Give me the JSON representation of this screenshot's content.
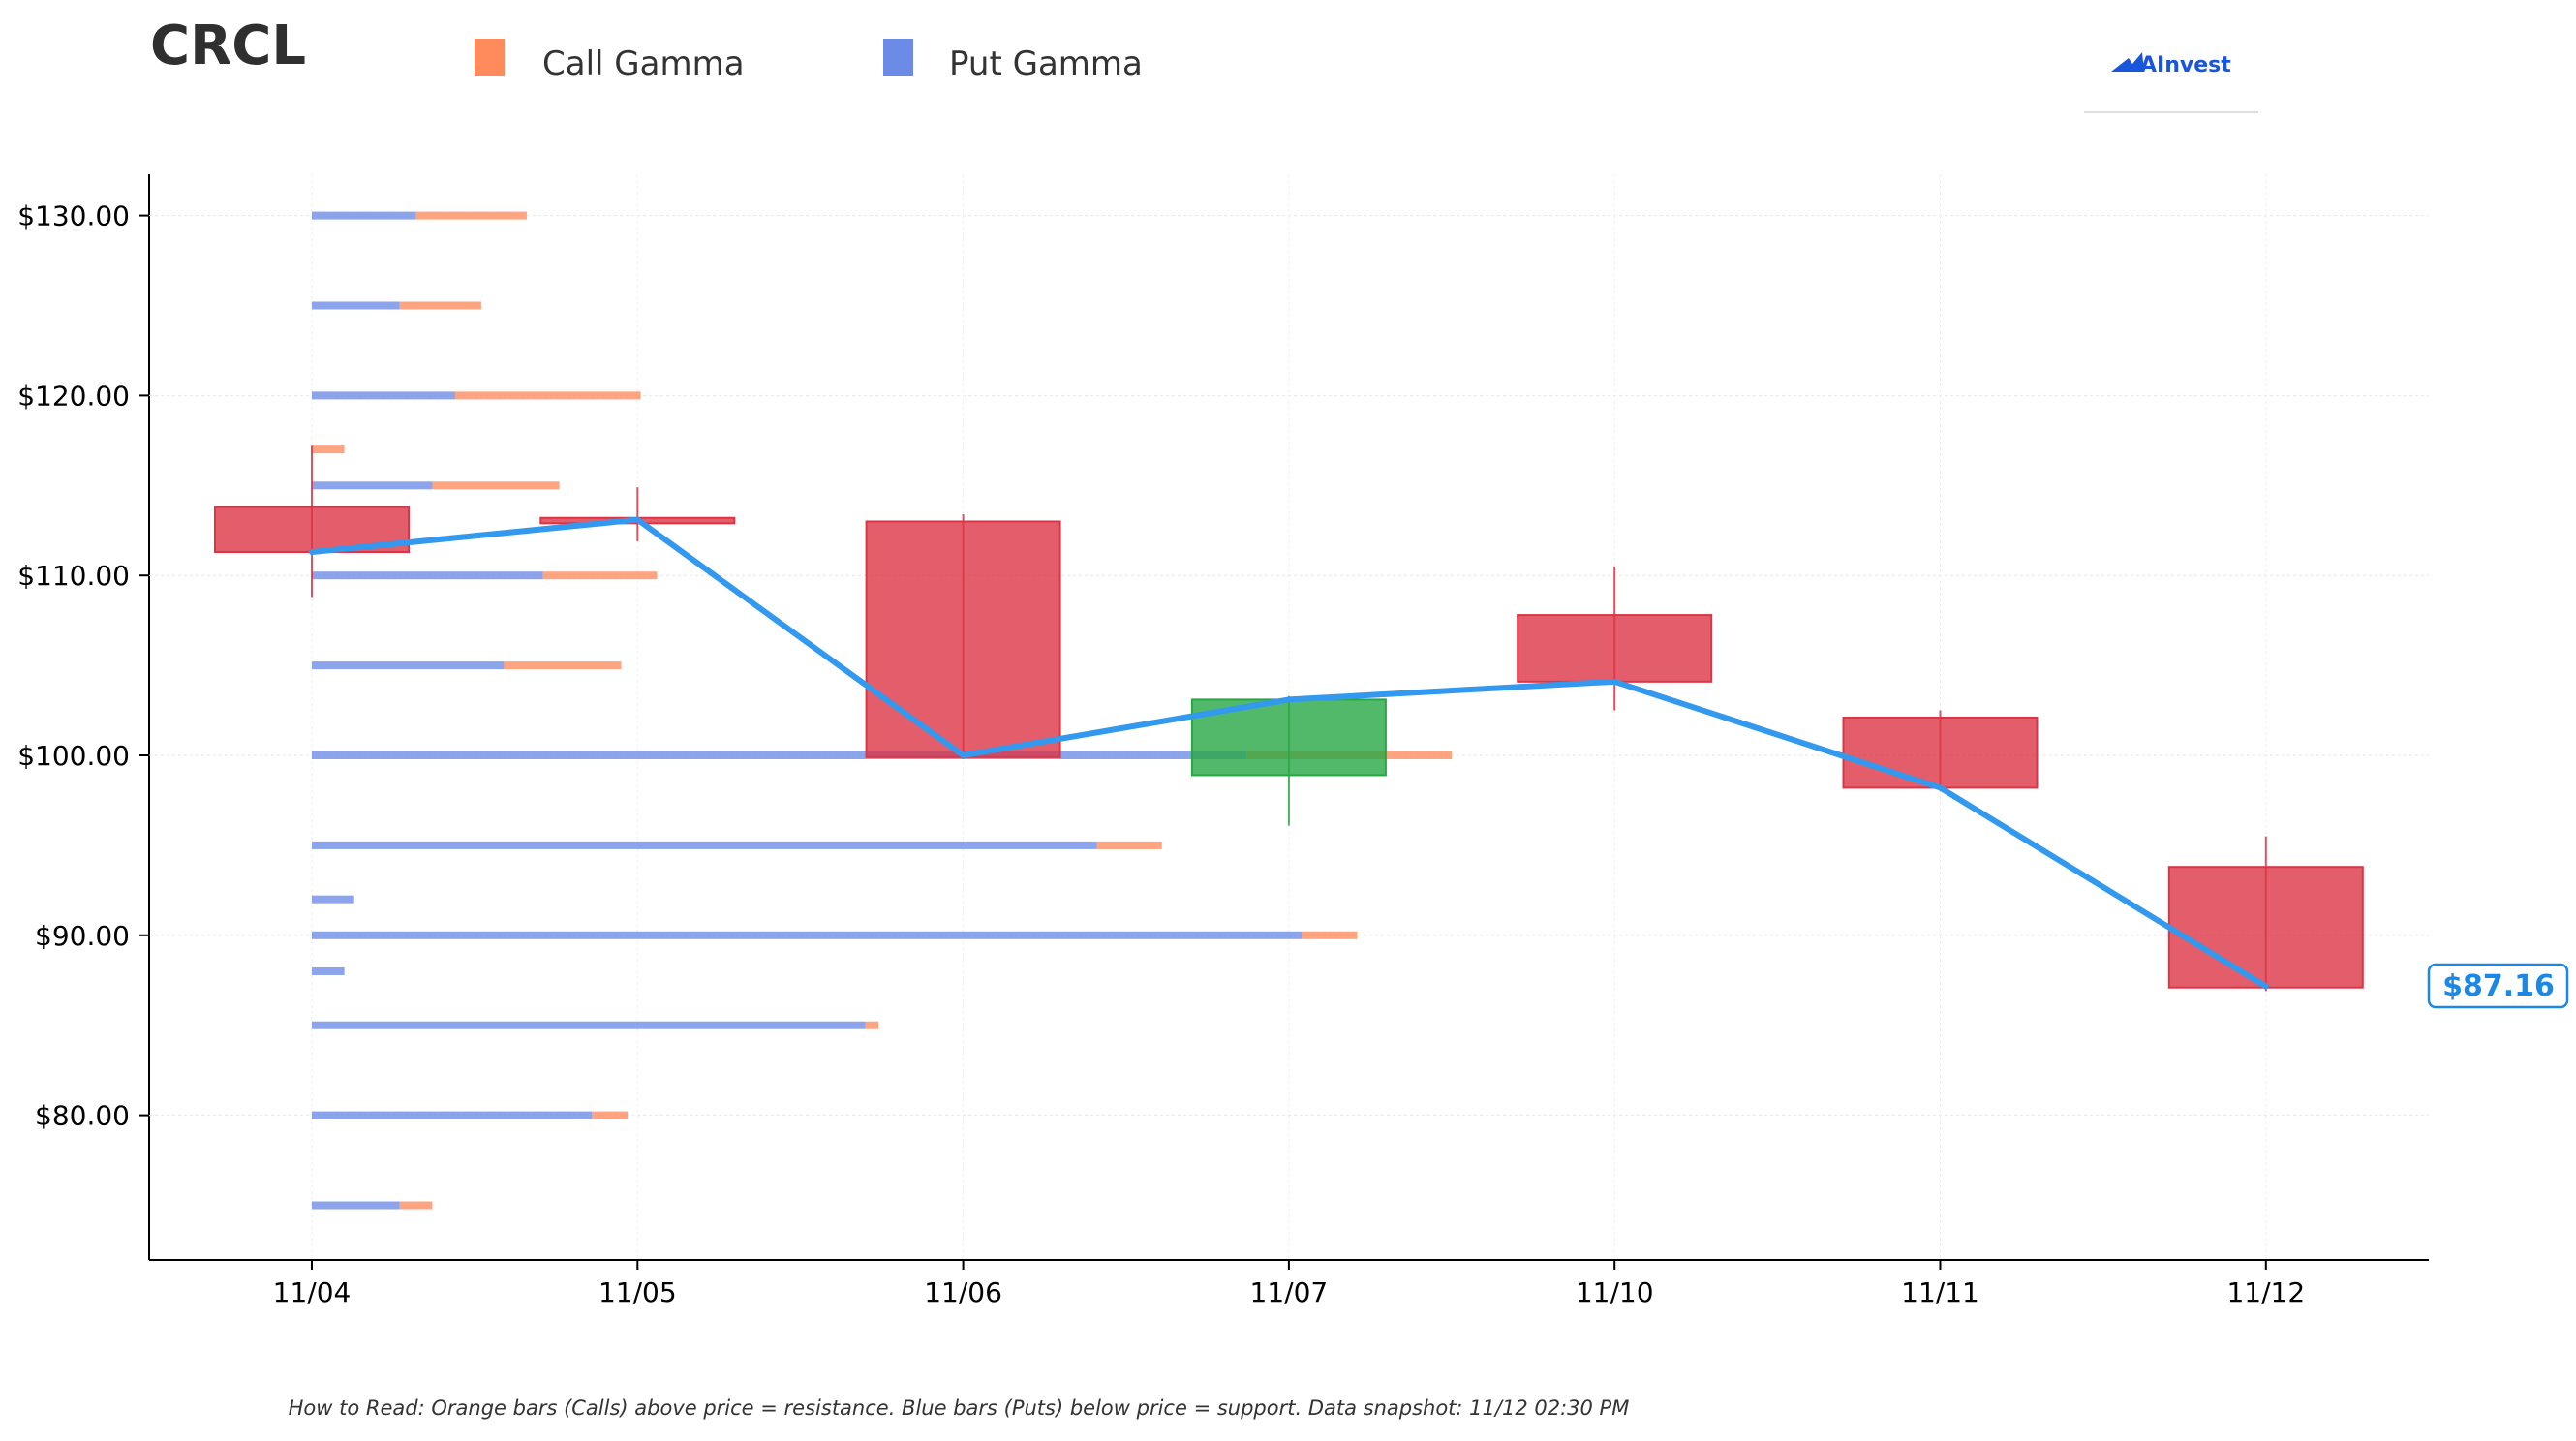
{
  "header": {
    "ticker": "CRCL",
    "legend": [
      {
        "label": "Call Gamma",
        "color": "#ff8a5c"
      },
      {
        "label": "Put Gamma",
        "color": "#6b8be6"
      }
    ],
    "logo_text": "AInvest"
  },
  "footer": {
    "note": "How to Read: Orange bars (Calls) above price = resistance. Blue bars (Puts) below price = support. Data snapshot: 11/12 02:30 PM"
  },
  "colors": {
    "call": "#ff8a5c",
    "put": "#6b8be6",
    "down_candle": "#dc3545",
    "up_candle": "#28a745",
    "price_line": "#3399ee",
    "price_tag": "#1a88e6",
    "logo": "#1a56db"
  },
  "chart_data": {
    "type": "candlestick",
    "title": "CRCL",
    "x_categories": [
      "11/04",
      "11/05",
      "11/06",
      "11/07",
      "11/10",
      "11/11",
      "11/12"
    ],
    "y_ticks": [
      "$80.00",
      "$90.00",
      "$100.00",
      "$110.00",
      "$120.00",
      "$130.00"
    ],
    "ylim": [
      72,
      132.3
    ],
    "y_grid": true,
    "legend_position": "top",
    "candles": [
      {
        "date": "11/04",
        "open": 113.8,
        "close": 111.3,
        "high": 117.2,
        "low": 108.8
      },
      {
        "date": "11/05",
        "open": 113.2,
        "close": 112.9,
        "high": 114.9,
        "low": 111.9
      },
      {
        "date": "11/06",
        "open": 113.0,
        "close": 99.9,
        "high": 113.4,
        "low": 99.8
      },
      {
        "date": "11/07",
        "open": 98.9,
        "close": 103.1,
        "high": 103.3,
        "low": 96.1
      },
      {
        "date": "11/10",
        "open": 107.8,
        "close": 104.1,
        "high": 110.5,
        "low": 102.5
      },
      {
        "date": "11/11",
        "open": 102.1,
        "close": 98.2,
        "high": 102.5,
        "low": 98.0
      },
      {
        "date": "11/12",
        "open": 93.8,
        "close": 87.1,
        "high": 95.5,
        "low": 86.9
      }
    ],
    "price_line": [
      111.3,
      113.1,
      100.0,
      103.1,
      104.1,
      98.2,
      87.16
    ],
    "last_price_label": "$87.16",
    "gamma_x_units": "category",
    "gamma_levels": [
      {
        "strike": 130,
        "put": 0.32,
        "call": 0.34
      },
      {
        "strike": 125,
        "put": 0.27,
        "call": 0.25
      },
      {
        "strike": 120,
        "put": 0.44,
        "call": 0.57
      },
      {
        "strike": 117,
        "put": 0.0,
        "call": 0.1
      },
      {
        "strike": 115,
        "put": 0.37,
        "call": 0.39
      },
      {
        "strike": 110,
        "put": 0.71,
        "call": 0.35
      },
      {
        "strike": 105,
        "put": 0.59,
        "call": 0.36
      },
      {
        "strike": 100,
        "put": 2.87,
        "call": 0.63
      },
      {
        "strike": 95,
        "put": 2.41,
        "call": 0.2
      },
      {
        "strike": 92,
        "put": 0.13,
        "call": 0.0
      },
      {
        "strike": 90,
        "put": 3.04,
        "call": 0.17
      },
      {
        "strike": 88,
        "put": 0.1,
        "call": 0.0
      },
      {
        "strike": 85,
        "put": 1.7,
        "call": 0.04
      },
      {
        "strike": 80,
        "put": 0.86,
        "call": 0.11
      },
      {
        "strike": 75,
        "put": 0.27,
        "call": 0.1
      }
    ]
  }
}
